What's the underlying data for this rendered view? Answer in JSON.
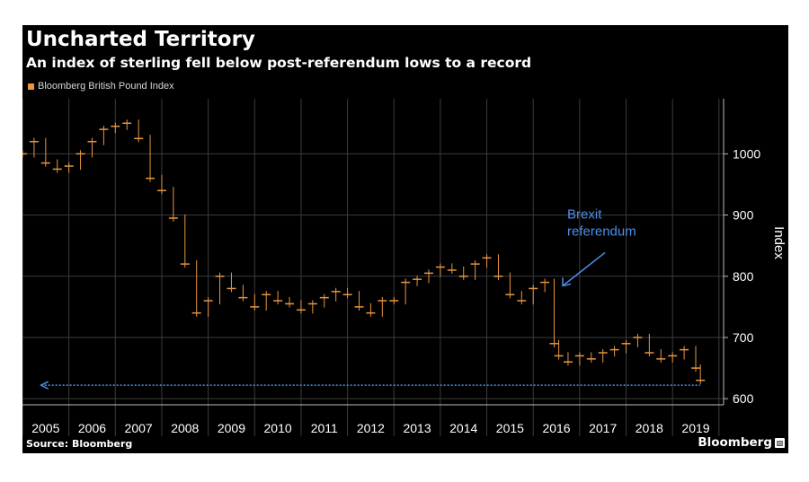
{
  "header": {
    "title": "Uncharted Territory",
    "subtitle": "An index of sterling fell below post-referendum lows to a record"
  },
  "footer": {
    "source": "Source: Bloomberg",
    "brand": "Bloomberg"
  },
  "colors": {
    "background": "#000000",
    "series": "#e8963f",
    "annotation": "#4d8fe8",
    "grid": "#3c3c3c",
    "text": "#ffffff"
  },
  "chart_data": {
    "type": "line",
    "style": "monthly candlesticks",
    "series": [
      {
        "name": "Bloomberg British Pound Index",
        "x": [
          2005.0,
          2005.25,
          2005.5,
          2005.75,
          2006.0,
          2006.25,
          2006.5,
          2006.75,
          2007.0,
          2007.25,
          2007.5,
          2007.75,
          2008.0,
          2008.25,
          2008.5,
          2008.75,
          2009.0,
          2009.25,
          2009.5,
          2009.75,
          2010.0,
          2010.25,
          2010.5,
          2010.75,
          2011.0,
          2011.25,
          2011.5,
          2011.75,
          2012.0,
          2012.25,
          2012.5,
          2012.75,
          2013.0,
          2013.25,
          2013.5,
          2013.75,
          2014.0,
          2014.25,
          2014.5,
          2014.75,
          2015.0,
          2015.25,
          2015.5,
          2015.75,
          2016.0,
          2016.25,
          2016.45,
          2016.55,
          2016.75,
          2017.0,
          2017.25,
          2017.5,
          2017.75,
          2018.0,
          2018.25,
          2018.5,
          2018.75,
          2019.0,
          2019.25,
          2019.5,
          2019.6
        ],
        "values": [
          1000,
          1020,
          985,
          975,
          980,
          1000,
          1020,
          1040,
          1045,
          1050,
          1025,
          960,
          940,
          895,
          820,
          740,
          760,
          800,
          780,
          765,
          750,
          770,
          760,
          755,
          745,
          755,
          765,
          775,
          770,
          750,
          740,
          760,
          760,
          790,
          795,
          805,
          815,
          810,
          800,
          820,
          830,
          800,
          770,
          760,
          780,
          790,
          690,
          670,
          660,
          670,
          665,
          675,
          680,
          690,
          700,
          675,
          665,
          670,
          680,
          650,
          630
        ]
      }
    ],
    "ylim": [
      590,
      1090
    ],
    "xlim": [
      2005.0,
      2020.1
    ],
    "yticks": [
      600,
      700,
      800,
      900,
      1000
    ],
    "xtick_labels": [
      "2005",
      "2006",
      "2007",
      "2008",
      "2009",
      "2010",
      "2011",
      "2012",
      "2013",
      "2014",
      "2015",
      "2016",
      "2017",
      "2018",
      "2019"
    ],
    "ylabel": "Index",
    "xlabel": "",
    "grid": true,
    "legend": "top-left",
    "annotations": [
      {
        "text_lines": [
          "Brexit",
          "referendum"
        ],
        "x": 2016.5,
        "y": 780
      }
    ],
    "reference_line": {
      "y": 622,
      "x_start": 2005.4,
      "x_end": 2019.6
    }
  }
}
